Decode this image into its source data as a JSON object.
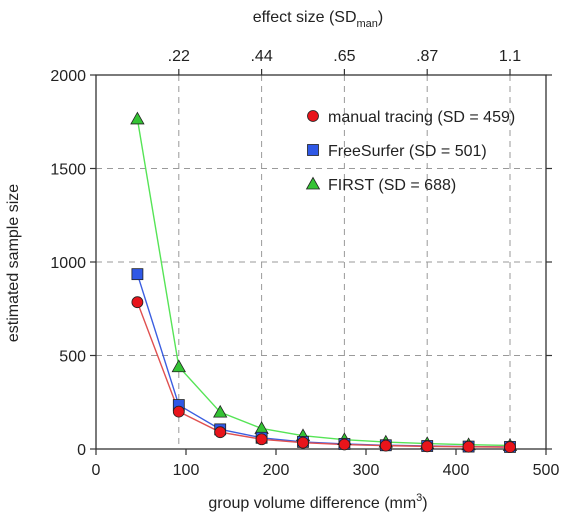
{
  "chart_data": {
    "type": "line",
    "xlabel": "group volume difference (mm",
    "xlabel_sup": "3",
    "xlabel_close": ")",
    "ylabel": "estimated sample size",
    "top_axis_label": "effect size (SD",
    "top_axis_label_sub": "man",
    "top_axis_label_close": ")",
    "xlim": [
      0,
      500
    ],
    "ylim": [
      0,
      2000
    ],
    "x_ticks": [
      "0",
      "100",
      "200",
      "300",
      "400",
      "500"
    ],
    "x_tick_values": [
      0,
      100,
      200,
      300,
      400,
      500
    ],
    "y_ticks": [
      "0",
      "500",
      "1000",
      "1500",
      "2000"
    ],
    "y_tick_values": [
      0,
      500,
      1000,
      1500,
      2000
    ],
    "top_ticks": [
      ".22",
      ".44",
      ".65",
      ".87",
      "1.1"
    ],
    "top_tick_x_values": [
      92,
      184,
      276,
      368,
      460
    ],
    "grid": true,
    "legend_position": "top-right",
    "x": [
      46,
      92,
      138,
      184,
      230,
      276,
      322,
      368,
      414,
      460
    ],
    "series": [
      {
        "name": "manual tracing (SD = 459)",
        "marker": "circle",
        "color": "#e8141b",
        "line_color": "#e05050",
        "values": [
          785,
          200,
          90,
          52,
          34,
          24,
          18,
          14,
          12,
          10
        ]
      },
      {
        "name": "FreeSurfer (SD = 501)",
        "marker": "square",
        "color": "#2f58e6",
        "line_color": "#3b5ee0",
        "values": [
          935,
          235,
          105,
          60,
          38,
          27,
          20,
          16,
          13,
          11
        ]
      },
      {
        "name": "FIRST (SD = 688)",
        "marker": "triangle",
        "color": "#34c334",
        "line_color": "#56e456",
        "values": [
          1765,
          440,
          197,
          110,
          71,
          50,
          37,
          29,
          23,
          19
        ]
      }
    ]
  }
}
